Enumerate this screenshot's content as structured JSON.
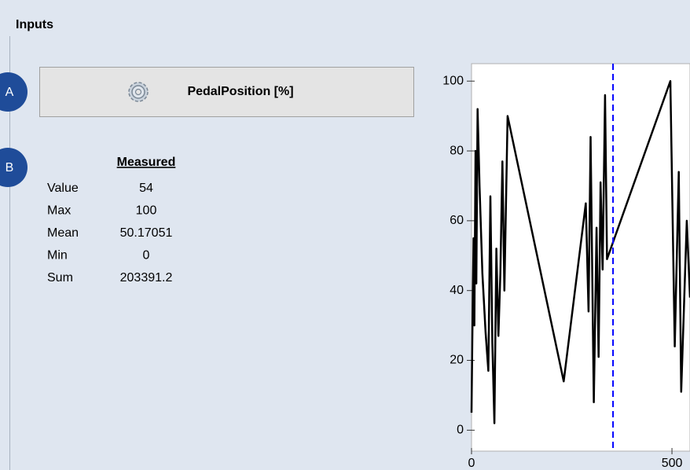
{
  "header": {
    "title": "Inputs"
  },
  "badges": [
    "A",
    "B"
  ],
  "button": {
    "label": "PedalPosition [%]"
  },
  "stats": {
    "heading": "Measured",
    "rows": [
      [
        "Value",
        "54"
      ],
      [
        "Max",
        "100"
      ],
      [
        "Mean",
        "50.17051"
      ],
      [
        "Min",
        "0"
      ],
      [
        "Sum",
        "203391.2"
      ]
    ]
  },
  "chart_data": {
    "type": "line",
    "x": [
      0,
      2,
      5,
      7,
      10,
      12,
      15,
      20,
      27,
      35,
      42,
      47,
      52,
      57,
      62,
      67,
      72,
      77,
      82,
      90,
      230,
      285,
      292,
      297,
      305,
      312,
      317,
      322,
      327,
      333,
      338,
      496,
      507,
      517,
      523,
      537,
      545
    ],
    "series": [
      {
        "color": "#000000",
        "values": [
          5,
          26,
          55,
          30,
          80,
          42,
          92,
          70,
          45,
          28,
          17,
          67,
          25,
          2,
          52,
          27,
          45,
          77,
          40,
          90,
          14,
          65,
          34,
          84,
          8,
          58,
          21,
          71,
          46,
          96,
          49,
          100,
          24,
          74,
          11,
          60,
          38
        ]
      }
    ],
    "cursor": {
      "x": 353,
      "color": "#0000ff"
    },
    "xlim": [
      0,
      545
    ],
    "ylim": [
      -6,
      105
    ],
    "xticks": [
      0,
      500
    ],
    "yticks": [
      0,
      20,
      40,
      60,
      80,
      100
    ]
  }
}
